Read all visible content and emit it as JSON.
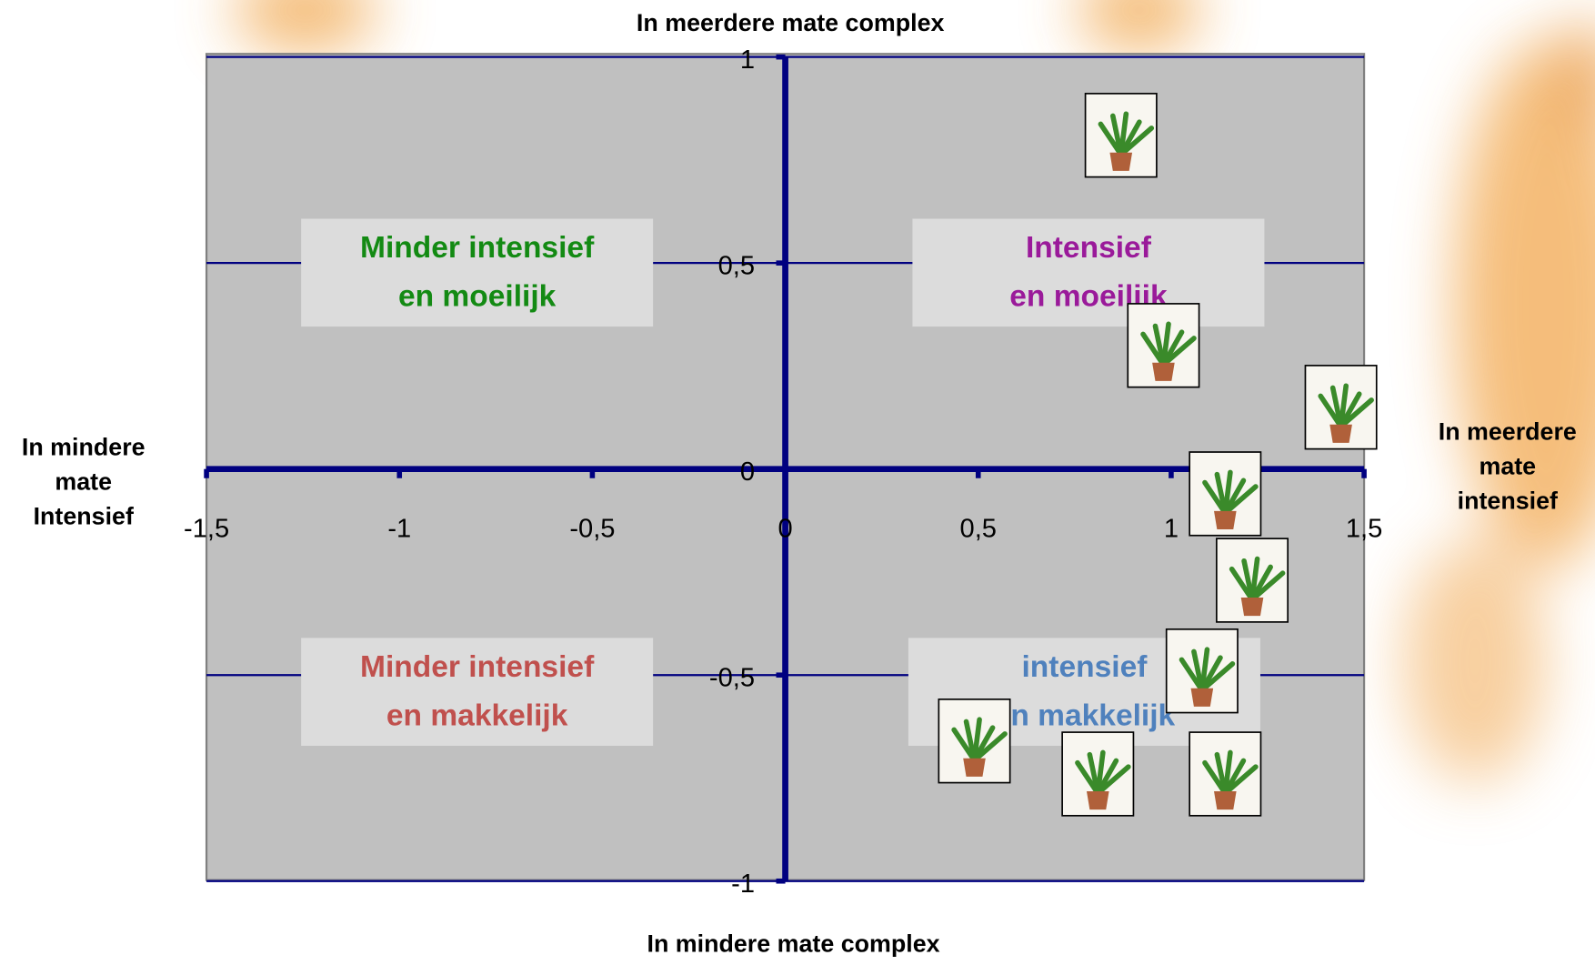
{
  "chart_data": {
    "type": "scatter",
    "title_top": "In meerdere mate complex",
    "title_bottom": "In mindere mate complex",
    "title_left": [
      "In mindere",
      "mate",
      "Intensief"
    ],
    "title_right": [
      "In meerdere",
      "mate",
      "intensief"
    ],
    "x": [
      0.87,
      0.98,
      1.44,
      1.14,
      1.21,
      1.08,
      0.49,
      0.81,
      1.14
    ],
    "values": [
      0.81,
      0.3,
      0.15,
      -0.06,
      -0.27,
      -0.49,
      -0.66,
      -0.74,
      -0.74
    ],
    "xlim": [
      -1.5,
      1.5
    ],
    "ylim": [
      -1,
      1
    ],
    "xticks": [
      {
        "value": -1.5,
        "label": "-1,5"
      },
      -1,
      {
        "value": -0.5,
        "label": "-0,5"
      },
      0,
      {
        "value": 0.5,
        "label": "0,5"
      },
      1,
      {
        "value": 1.5,
        "label": "1,5"
      }
    ],
    "yticks": [
      -1,
      {
        "value": -0.5,
        "label": "-0,5"
      },
      0,
      {
        "value": 0.5,
        "label": "0,5"
      },
      1
    ],
    "grid": "y",
    "axis_color": "#000080",
    "plot_color": "#c0c0c0",
    "quadrants": [
      {
        "lines": [
          "Minder intensief",
          "en moeilijk"
        ],
        "color": "#138a13"
      },
      {
        "lines": [
          "Intensief",
          "en moeilijk"
        ],
        "color": "#9a1a9a"
      },
      {
        "lines": [
          "Minder intensief",
          "en makkelijk"
        ],
        "color": "#c0504d"
      },
      {
        "lines": [
          "intensief",
          "en makkelijk"
        ],
        "color": "#4f81bd"
      }
    ]
  }
}
